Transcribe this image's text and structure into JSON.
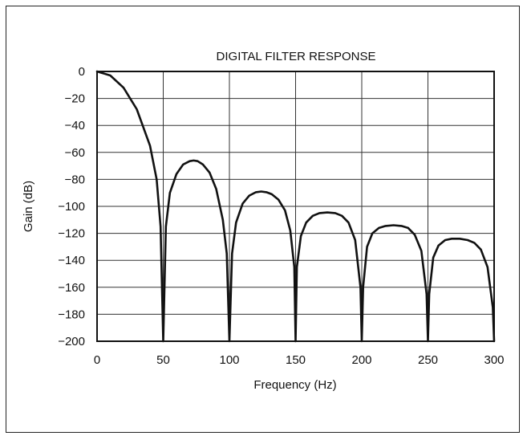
{
  "chart_data": {
    "type": "line",
    "title": "DIGITAL FILTER RESPONSE",
    "xlabel": "Frequency (Hz)",
    "ylabel": "Gain (dB)",
    "xlim": [
      0,
      300
    ],
    "ylim": [
      -200,
      0
    ],
    "x_ticks": [
      "0",
      "50",
      "100",
      "150",
      "200",
      "250",
      "300"
    ],
    "y_ticks": [
      "0",
      "−20",
      "−40",
      "−60",
      "−80",
      "−100",
      "−120",
      "−140",
      "−160",
      "−180",
      "−200"
    ],
    "grid": true,
    "series": [
      {
        "x": [
          0,
          10,
          20,
          30,
          40,
          45,
          48,
          50,
          52,
          55,
          60,
          65,
          70,
          73,
          76,
          80,
          85,
          90,
          95,
          98,
          100,
          102,
          105,
          110,
          115,
          120,
          124,
          128,
          132,
          137,
          142,
          146,
          149,
          150,
          151,
          154,
          158,
          163,
          168,
          174,
          180,
          185,
          190,
          195,
          199,
          200,
          201,
          204,
          208,
          213,
          218,
          224,
          230,
          235,
          240,
          245,
          249,
          250,
          251,
          254,
          258,
          263,
          268,
          274,
          280,
          285,
          290,
          295,
          299,
          300
        ],
        "y": [
          0,
          -3,
          -12,
          -28,
          -55,
          -80,
          -115,
          -200,
          -115,
          -90,
          -76,
          -69,
          -66.5,
          -66,
          -66.5,
          -69,
          -75,
          -87,
          -110,
          -135,
          -200,
          -135,
          -112,
          -98,
          -92,
          -89.5,
          -89,
          -89.5,
          -91,
          -95,
          -103,
          -118,
          -145,
          -200,
          -145,
          -122,
          -112,
          -107,
          -105,
          -104.5,
          -105,
          -107,
          -112,
          -125,
          -160,
          -200,
          -160,
          -130,
          -120,
          -116,
          -114.5,
          -114,
          -114.5,
          -116,
          -121,
          -133,
          -165,
          -200,
          -165,
          -138,
          -129,
          -125,
          -124,
          -124,
          -125,
          -127,
          -132,
          -145,
          -175,
          -200
        ]
      }
    ]
  }
}
